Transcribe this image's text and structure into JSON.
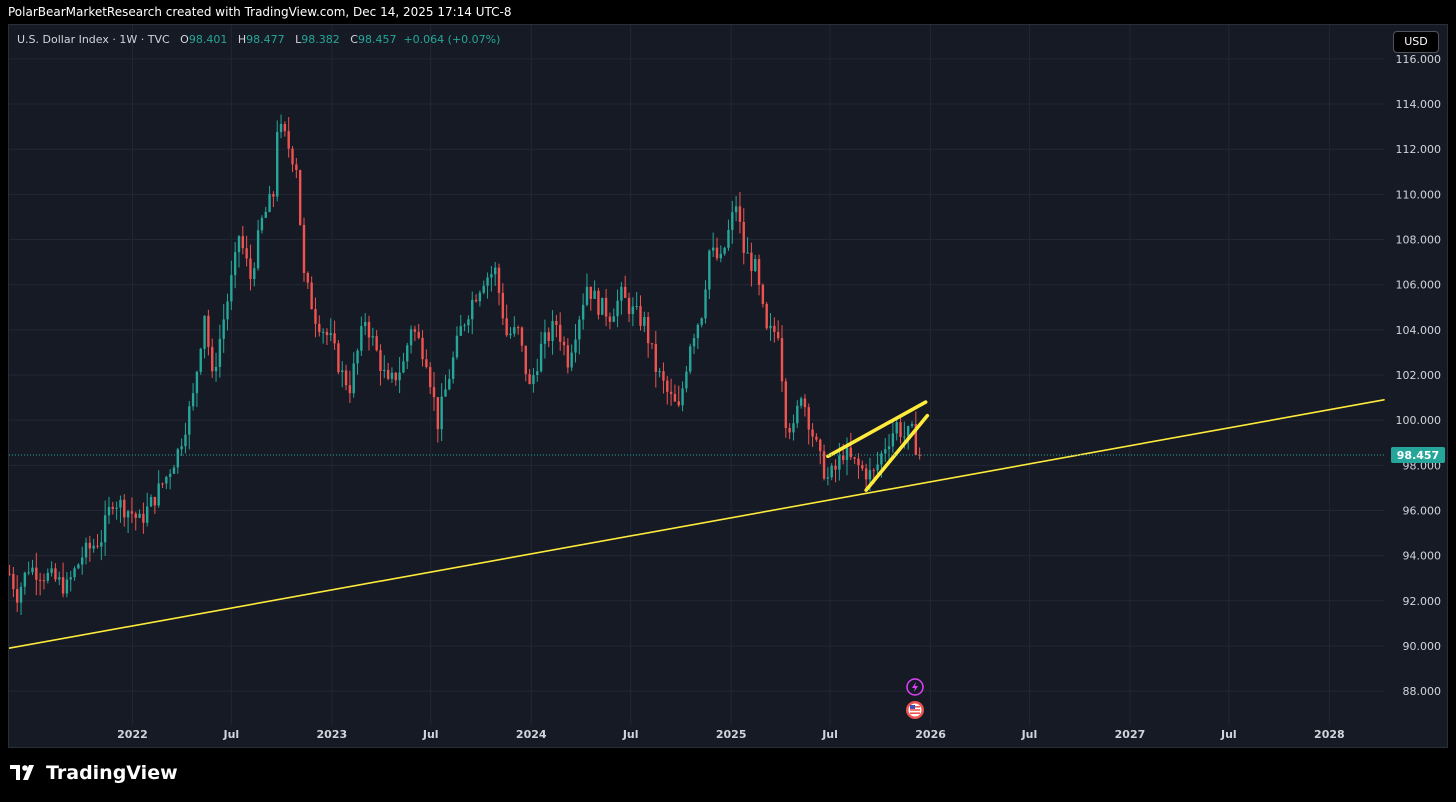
{
  "header": {
    "attribution": "PolarBearMarketResearch created with TradingView.com, Dec 14, 2025 17:14 UTC-8"
  },
  "symbol_bar": {
    "name": "U.S. Dollar Index · 1W · TVC",
    "o_label": "O",
    "o_value": "98.401",
    "h_label": "H",
    "h_value": "98.477",
    "l_label": "L",
    "l_value": "98.382",
    "c_label": "C",
    "c_value": "98.457",
    "change": "+0.064 (+0.07%)"
  },
  "currency_button": "USD",
  "colors": {
    "background": "#151a24",
    "up": "#26a69a",
    "down": "#ef5350",
    "trendline": "#ffeb3b",
    "price_label_bg": "#26a69a",
    "grid": "#232733",
    "axis_text": "#d1d4dc"
  },
  "icons": [
    "lightning-event-icon",
    "us-flag-event-icon"
  ],
  "footer": {
    "brand": "TradingView",
    "logo_icon": "tradingview-logo-icon"
  },
  "chart_data": {
    "type": "candlestick",
    "interval": "1W",
    "last_price": 98.457,
    "last_price_label": "98.457",
    "y_range": [
      86.5,
      117.5
    ],
    "y_ticks": [
      "116.000",
      "114.000",
      "112.000",
      "110.000",
      "108.000",
      "106.000",
      "104.000",
      "102.000",
      "100.000",
      "98.000",
      "96.000",
      "94.000",
      "92.000",
      "90.000",
      "88.000"
    ],
    "x_ticks": [
      {
        "label": "2022",
        "date": "2022-01-01"
      },
      {
        "label": "Jul",
        "date": "2022-07-01"
      },
      {
        "label": "2023",
        "date": "2023-01-01"
      },
      {
        "label": "Jul",
        "date": "2023-07-01"
      },
      {
        "label": "2024",
        "date": "2024-01-01"
      },
      {
        "label": "Jul",
        "date": "2024-07-01"
      },
      {
        "label": "2025",
        "date": "2025-01-01"
      },
      {
        "label": "Jul",
        "date": "2025-07-01"
      },
      {
        "label": "2026",
        "date": "2026-01-01"
      },
      {
        "label": "Jul",
        "date": "2026-07-01"
      },
      {
        "label": "2027",
        "date": "2027-01-01"
      },
      {
        "label": "Jul",
        "date": "2027-07-01"
      },
      {
        "label": "2028",
        "date": "2028-01-01"
      }
    ],
    "x_range": [
      "2021-05-20",
      "2028-04-10"
    ],
    "close_path": [
      [
        "2021-05-21",
        93.2
      ],
      [
        "2021-06-04",
        92.3
      ],
      [
        "2021-06-25",
        93.5
      ],
      [
        "2021-08-06",
        93.0
      ],
      [
        "2021-09-03",
        92.6
      ],
      [
        "2021-10-01",
        94.0
      ],
      [
        "2021-11-05",
        94.8
      ],
      [
        "2021-11-26",
        96.5
      ],
      [
        "2021-12-31",
        95.9
      ],
      [
        "2022-01-14",
        95.5
      ],
      [
        "2022-02-04",
        96.3
      ],
      [
        "2022-03-04",
        97.5
      ],
      [
        "2022-03-25",
        98.6
      ],
      [
        "2022-04-22",
        101.0
      ],
      [
        "2022-05-13",
        104.8
      ],
      [
        "2022-05-27",
        101.8
      ],
      [
        "2022-06-17",
        104.5
      ],
      [
        "2022-07-08",
        107.0
      ],
      [
        "2022-07-15",
        108.2
      ],
      [
        "2022-08-05",
        106.3
      ],
      [
        "2022-08-26",
        108.8
      ],
      [
        "2022-09-16",
        110.0
      ],
      [
        "2022-09-23",
        113.0
      ],
      [
        "2022-10-07",
        112.5
      ],
      [
        "2022-10-28",
        111.3
      ],
      [
        "2022-11-11",
        106.3
      ],
      [
        "2022-12-02",
        104.6
      ],
      [
        "2022-12-30",
        103.5
      ],
      [
        "2023-01-20",
        102.0
      ],
      [
        "2023-02-03",
        101.5
      ],
      [
        "2023-03-03",
        104.5
      ],
      [
        "2023-03-24",
        103.0
      ],
      [
        "2023-04-14",
        101.5
      ],
      [
        "2023-05-12",
        102.5
      ],
      [
        "2023-05-26",
        104.2
      ],
      [
        "2023-06-23",
        102.8
      ],
      [
        "2023-07-14",
        99.9
      ],
      [
        "2023-08-04",
        102.0
      ],
      [
        "2023-08-25",
        104.0
      ],
      [
        "2023-09-15",
        105.3
      ],
      [
        "2023-10-06",
        106.3
      ],
      [
        "2023-10-27",
        106.6
      ],
      [
        "2023-11-17",
        103.8
      ],
      [
        "2023-12-08",
        103.9
      ],
      [
        "2023-12-29",
        101.4
      ],
      [
        "2024-01-19",
        103.2
      ],
      [
        "2024-02-16",
        104.3
      ],
      [
        "2024-03-08",
        102.7
      ],
      [
        "2024-04-12",
        106.0
      ],
      [
        "2024-05-03",
        105.1
      ],
      [
        "2024-05-24",
        104.7
      ],
      [
        "2024-06-14",
        105.5
      ],
      [
        "2024-07-05",
        104.8
      ],
      [
        "2024-07-26",
        104.3
      ],
      [
        "2024-08-16",
        102.3
      ],
      [
        "2024-09-06",
        101.2
      ],
      [
        "2024-09-27",
        100.4
      ],
      [
        "2024-10-18",
        103.5
      ],
      [
        "2024-11-08",
        104.8
      ],
      [
        "2024-11-22",
        107.5
      ],
      [
        "2024-12-13",
        107.0
      ],
      [
        "2025-01-10",
        109.6
      ],
      [
        "2025-01-24",
        107.5
      ],
      [
        "2025-02-14",
        106.7
      ],
      [
        "2025-03-07",
        103.8
      ],
      [
        "2025-03-28",
        104.0
      ],
      [
        "2025-04-11",
        100.1
      ],
      [
        "2025-04-25",
        99.5
      ],
      [
        "2025-05-09",
        101.3
      ],
      [
        "2025-05-30",
        99.4
      ],
      [
        "2025-06-13",
        98.2
      ],
      [
        "2025-06-27",
        97.4
      ],
      [
        "2025-07-11",
        97.8
      ],
      [
        "2025-07-25",
        98.6
      ],
      [
        "2025-08-08",
        98.2
      ],
      [
        "2025-08-29",
        97.8
      ],
      [
        "2025-09-12",
        97.6
      ],
      [
        "2025-09-19",
        97.6
      ],
      [
        "2025-10-10",
        98.9
      ],
      [
        "2025-10-31",
        99.8
      ],
      [
        "2025-11-14",
        99.3
      ],
      [
        "2025-11-28",
        99.4
      ],
      [
        "2025-12-05",
        98.9
      ],
      [
        "2025-12-12",
        98.457
      ]
    ],
    "annotations": [
      {
        "type": "trendline",
        "name": "long-term support line",
        "from": [
          "2021-05-20",
          89.9
        ],
        "to": [
          "2028-04-10",
          100.9
        ],
        "width": 1.6
      },
      {
        "type": "trendline",
        "name": "wedge upper line",
        "from": [
          "2025-06-27",
          98.4
        ],
        "to": [
          "2025-12-23",
          100.8
        ],
        "width": 3.6
      },
      {
        "type": "trendline",
        "name": "wedge lower line",
        "from": [
          "2025-09-05",
          96.9
        ],
        "to": [
          "2025-12-26",
          100.2
        ],
        "width": 3.6
      }
    ]
  }
}
